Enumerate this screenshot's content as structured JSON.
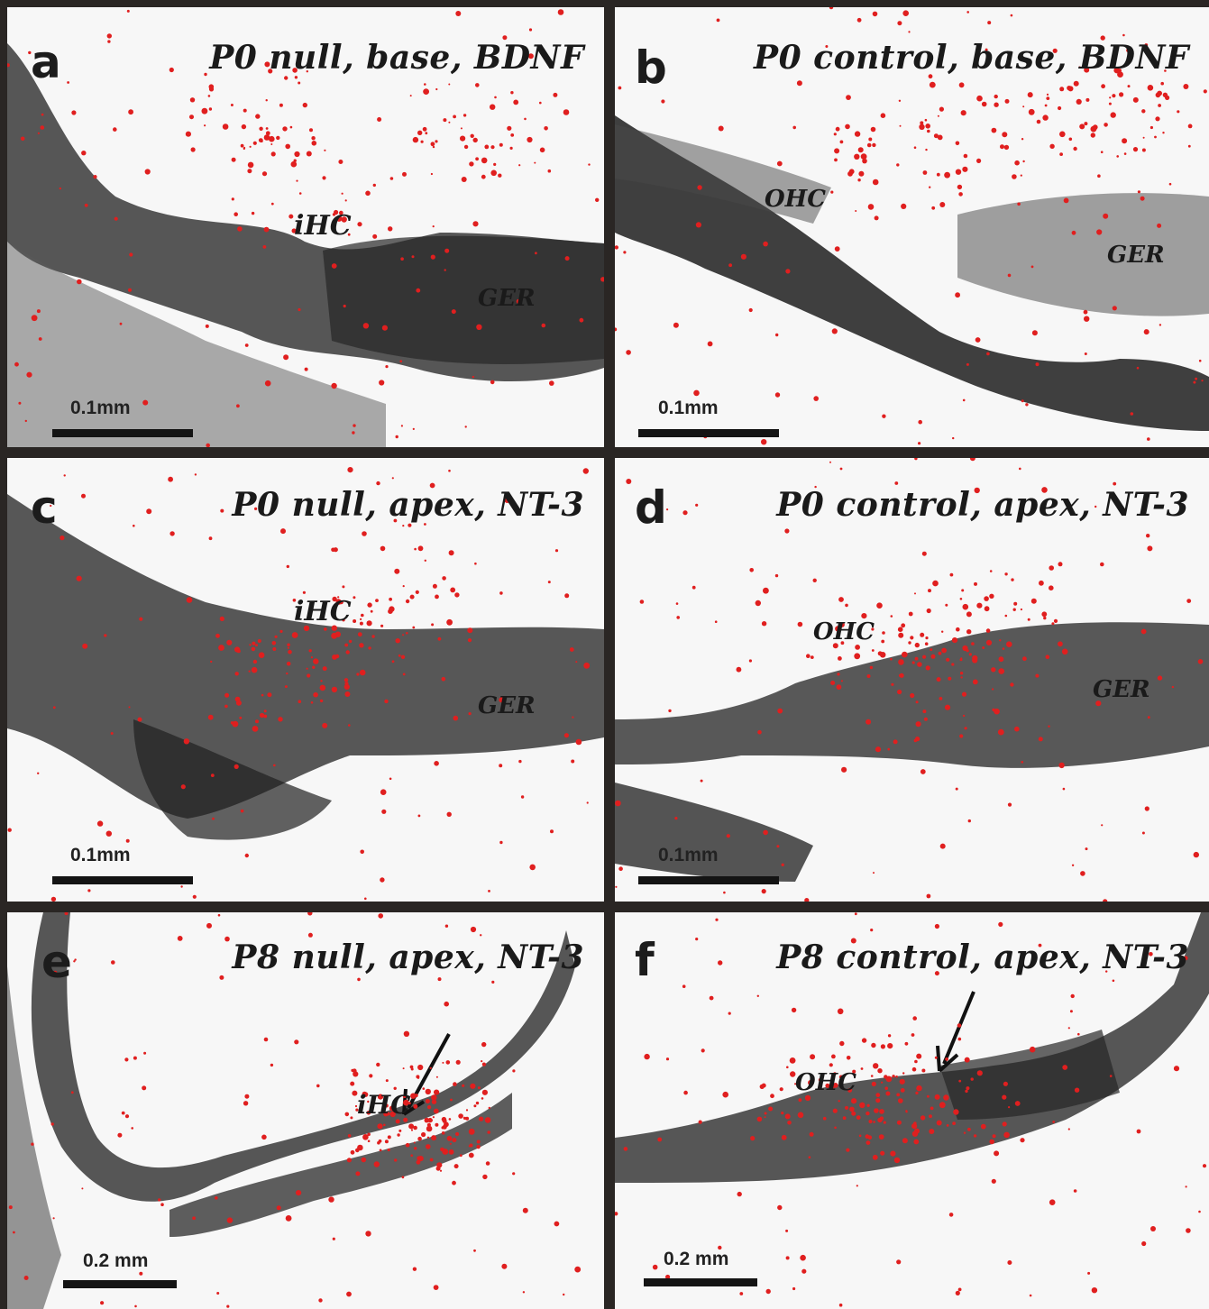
{
  "figure": {
    "panels": [
      {
        "letter": "a",
        "title": "P0 null, base, BDNF",
        "scale_label": "0.1mm",
        "labels": [
          "iHC",
          "GER"
        ]
      },
      {
        "letter": "b",
        "title": "P0 control, base, BDNF",
        "scale_label": "0.1mm",
        "labels": [
          "OHC",
          "GER"
        ]
      },
      {
        "letter": "c",
        "title": "P0 null, apex, NT-3",
        "scale_label": "0.1mm",
        "labels": [
          "iHC",
          "GER"
        ]
      },
      {
        "letter": "d",
        "title": "P0 control, apex, NT-3",
        "scale_label": "0.1mm",
        "labels": [
          "OHC",
          "GER"
        ]
      },
      {
        "letter": "e",
        "title": "P8 null, apex, NT-3",
        "scale_label": "0.2 mm",
        "labels": [
          "iHC"
        ]
      },
      {
        "letter": "f",
        "title": "P8 control, apex, NT-3",
        "scale_label": "0.2 mm",
        "labels": [
          "OHC"
        ]
      }
    ]
  },
  "colors": {
    "stain": "#2b2b2b",
    "grain": "#e01f1f",
    "frame": "#2a2624",
    "background": "#f7f7f7"
  }
}
